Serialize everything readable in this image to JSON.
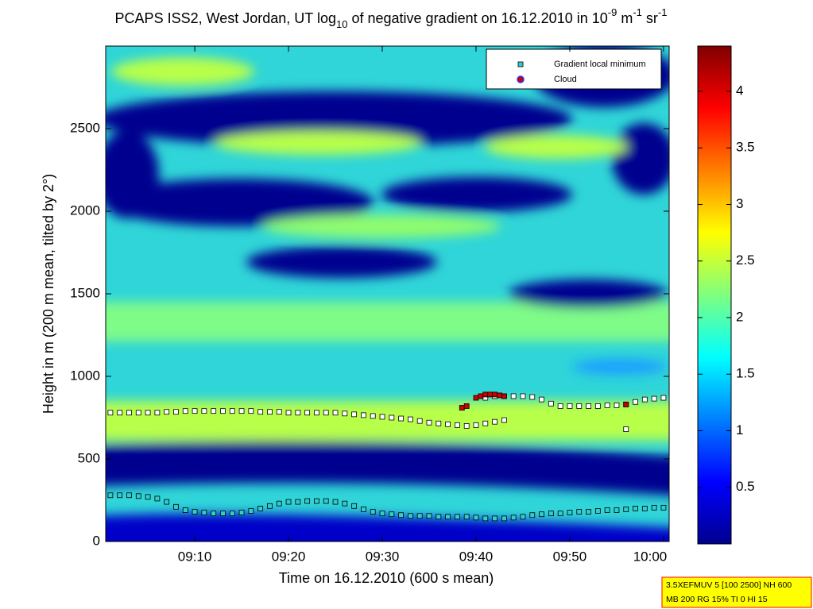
{
  "chart_data": {
    "type": "scatter",
    "title": [
      {
        "text": "PCAPS ISS2, West Jordan, UT log"
      },
      {
        "text": "10",
        "script": "sub"
      },
      {
        "text": " of negative gradient on 16.12.2010 in 10"
      },
      {
        "text": "-9",
        "script": "super"
      },
      {
        "text": " m"
      },
      {
        "text": "-1",
        "script": "super"
      },
      {
        "text": " sr"
      },
      {
        "text": "-1",
        "script": "super"
      }
    ],
    "x_label": "Time on 16.12.2010 (600 s mean)",
    "y_label": "Height in m (200 m mean, tilted by 2°)",
    "xlim": [
      0.5,
      60.6
    ],
    "xticks": [
      {
        "value": 10,
        "label": "09:10"
      },
      {
        "value": 20,
        "label": "09:20"
      },
      {
        "value": 30,
        "label": "09:30"
      },
      {
        "value": 40,
        "label": "09:40"
      },
      {
        "value": 50,
        "label": "09:50"
      },
      {
        "value": 60,
        "label": "10:00"
      }
    ],
    "ylim": [
      0,
      3000
    ],
    "yticks": [
      0,
      500,
      1000,
      1500,
      2000,
      2500
    ],
    "clim": [
      0,
      4.4
    ],
    "cticks": [
      0.5,
      1,
      1.5,
      2,
      2.5,
      3,
      3.5,
      4
    ],
    "colormap": "jet",
    "legend": "upper right",
    "series": [
      {
        "name": "Gradient local minimum",
        "color": "#33cccc",
        "x": [
          1,
          2,
          3,
          4,
          5,
          6,
          7,
          8,
          9,
          10,
          11,
          12,
          13,
          14,
          15,
          16,
          17,
          18,
          19,
          20,
          21,
          22,
          23,
          24,
          25,
          26,
          27,
          28,
          29,
          30,
          31,
          32,
          33,
          34,
          35,
          36,
          37,
          38,
          39,
          40,
          41,
          42,
          43,
          44,
          45,
          46,
          47,
          48,
          49,
          50,
          51,
          52,
          53,
          54,
          55,
          56,
          57,
          58,
          59,
          60
        ],
        "values": [
          280,
          280,
          280,
          275,
          270,
          260,
          240,
          210,
          190,
          180,
          175,
          170,
          170,
          170,
          175,
          185,
          200,
          215,
          230,
          240,
          240,
          245,
          245,
          245,
          240,
          230,
          215,
          195,
          180,
          170,
          165,
          160,
          155,
          155,
          155,
          150,
          150,
          150,
          150,
          145,
          140,
          140,
          140,
          145,
          150,
          160,
          165,
          170,
          170,
          175,
          180,
          180,
          185,
          190,
          190,
          195,
          200,
          200,
          205,
          205
        ]
      },
      {
        "color": "#ffffff",
        "x": [
          1,
          2,
          3,
          4,
          5,
          6,
          7,
          8,
          9,
          10,
          11,
          12,
          13,
          14,
          15,
          16,
          17,
          18,
          19,
          20,
          21,
          22,
          23,
          24,
          25,
          26,
          27,
          28,
          29,
          30,
          31,
          32,
          33,
          34,
          35,
          36,
          37,
          38,
          39,
          40,
          41,
          42,
          43
        ],
        "values": [
          780,
          780,
          780,
          780,
          780,
          780,
          785,
          785,
          790,
          790,
          790,
          790,
          790,
          790,
          790,
          790,
          785,
          785,
          785,
          780,
          780,
          780,
          780,
          780,
          780,
          775,
          770,
          765,
          760,
          755,
          750,
          745,
          740,
          730,
          720,
          715,
          710,
          705,
          700,
          705,
          715,
          725,
          735
        ]
      },
      {
        "color": "#ffffff",
        "x": [
          41,
          42,
          43,
          44,
          45,
          46,
          47,
          48,
          49,
          50,
          51,
          52,
          53,
          54,
          55,
          56,
          57,
          58,
          59,
          60
        ],
        "values": [
          870,
          880,
          880,
          880,
          880,
          875,
          860,
          835,
          820,
          820,
          820,
          820,
          820,
          825,
          825,
          830,
          845,
          860,
          865,
          870
        ]
      },
      {
        "color": "#ffffff",
        "x": [
          56
        ],
        "values": [
          680
        ]
      },
      {
        "name": "Cloud",
        "color": "#cc0000",
        "x": [
          38.5,
          39,
          40,
          40.5,
          41,
          41.5,
          42,
          42.5,
          43,
          56
        ],
        "values": [
          810,
          820,
          870,
          880,
          890,
          890,
          890,
          885,
          880,
          830
        ]
      }
    ],
    "footer": [
      "3.5XEFMUV 5 [100 2500] NH 600",
      "MB 200 RG 15% TI 0 HI 15"
    ]
  }
}
